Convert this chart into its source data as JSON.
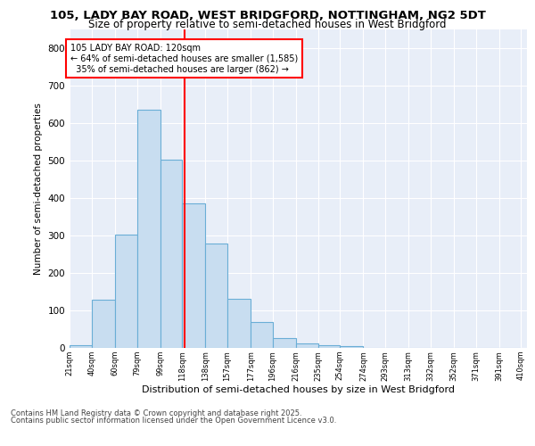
{
  "title1": "105, LADY BAY ROAD, WEST BRIDGFORD, NOTTINGHAM, NG2 5DT",
  "title2": "Size of property relative to semi-detached houses in West Bridgford",
  "xlabel": "Distribution of semi-detached houses by size in West Bridgford",
  "ylabel": "Number of semi-detached properties",
  "bins": [
    "21sqm",
    "40sqm",
    "60sqm",
    "79sqm",
    "99sqm",
    "118sqm",
    "138sqm",
    "157sqm",
    "177sqm",
    "196sqm",
    "216sqm",
    "235sqm",
    "254sqm",
    "274sqm",
    "293sqm",
    "313sqm",
    "332sqm",
    "352sqm",
    "371sqm",
    "391sqm",
    "410sqm"
  ],
  "bin_edges": [
    21,
    40,
    60,
    79,
    99,
    118,
    138,
    157,
    177,
    196,
    216,
    235,
    254,
    274,
    293,
    313,
    332,
    352,
    371,
    391,
    410
  ],
  "values": [
    8,
    128,
    302,
    636,
    502,
    384,
    278,
    130,
    70,
    25,
    11,
    8,
    5,
    0,
    0,
    0,
    0,
    0,
    0,
    0
  ],
  "bar_color": "#c8ddf0",
  "bar_edge_color": "#6aaed6",
  "vline_x": 120,
  "vline_color": "red",
  "annotation_line1": "105 LADY BAY ROAD: 120sqm",
  "annotation_line2": "← 64% of semi-detached houses are smaller (1,585)",
  "annotation_line3": "  35% of semi-detached houses are larger (862) →",
  "ylim": [
    0,
    850
  ],
  "yticks": [
    0,
    100,
    200,
    300,
    400,
    500,
    600,
    700,
    800
  ],
  "plot_bg_color": "#e8eef8",
  "footer_line1": "Contains HM Land Registry data © Crown copyright and database right 2025.",
  "footer_line2": "Contains public sector information licensed under the Open Government Licence v3.0."
}
